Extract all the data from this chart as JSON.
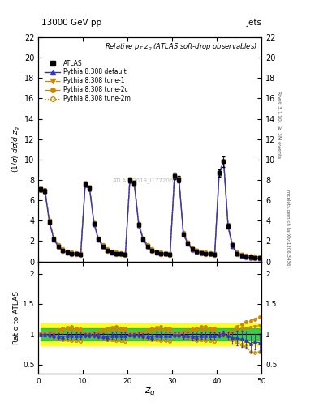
{
  "title_top": "13000 GeV pp",
  "title_right": "Jets",
  "plot_title": "Relative $p_T$ $z_g$ (ATLAS soft-drop observables)",
  "ylabel_main": "$(1/\\sigma)$ $d\\sigma/d$ $z_g$",
  "ylabel_ratio": "Ratio to ATLAS",
  "xlabel": "$z_g$",
  "right_label_top": "Rivet 3.1.10, ≥ 3M events",
  "right_label_mid": "mcplots.cern.ch [arXiv:1306.3436]",
  "watermark": "ATLAS_2019_I1772062",
  "xlim": [
    0,
    50
  ],
  "ylim_main": [
    0,
    22
  ],
  "ylim_ratio": [
    0.35,
    2.2
  ],
  "yticks_main": [
    0,
    2,
    4,
    6,
    8,
    10,
    12,
    14,
    16,
    18,
    20,
    22
  ],
  "yticks_ratio": [
    0.5,
    1.0,
    1.5,
    2.0
  ],
  "xticks": [
    0,
    10,
    20,
    30,
    40,
    50
  ],
  "colors": {
    "atlas_data": "#000000",
    "pythia_default": "#3333cc",
    "pythia_orange": "#cc8800",
    "band_yellow": "#ffff00",
    "band_green": "#00bb55"
  },
  "x_data": [
    0.5,
    1.5,
    2.5,
    3.5,
    4.5,
    5.5,
    6.5,
    7.5,
    8.5,
    9.5,
    10.5,
    11.5,
    12.5,
    13.5,
    14.5,
    15.5,
    16.5,
    17.5,
    18.5,
    19.5,
    20.5,
    21.5,
    22.5,
    23.5,
    24.5,
    25.5,
    26.5,
    27.5,
    28.5,
    29.5,
    30.5,
    31.5,
    32.5,
    33.5,
    34.5,
    35.5,
    36.5,
    37.5,
    38.5,
    39.5,
    40.5,
    41.5,
    42.5,
    43.5,
    44.5,
    45.5,
    46.5,
    47.5,
    48.5,
    49.5
  ],
  "atlas_y": [
    7.1,
    6.9,
    3.9,
    2.2,
    1.5,
    1.1,
    0.9,
    0.8,
    0.75,
    0.72,
    7.6,
    7.2,
    3.7,
    2.2,
    1.5,
    1.1,
    0.9,
    0.8,
    0.75,
    0.7,
    8.0,
    7.7,
    3.6,
    2.2,
    1.5,
    1.1,
    0.9,
    0.8,
    0.75,
    0.7,
    8.4,
    8.1,
    2.7,
    1.8,
    1.2,
    1.0,
    0.85,
    0.8,
    0.75,
    0.7,
    8.7,
    9.8,
    3.5,
    1.6,
    0.8,
    0.6,
    0.5,
    0.45,
    0.4,
    0.35
  ],
  "atlas_yerr": [
    0.2,
    0.2,
    0.15,
    0.1,
    0.08,
    0.06,
    0.05,
    0.05,
    0.04,
    0.04,
    0.25,
    0.25,
    0.15,
    0.1,
    0.08,
    0.06,
    0.05,
    0.05,
    0.04,
    0.04,
    0.25,
    0.25,
    0.15,
    0.1,
    0.08,
    0.06,
    0.05,
    0.05,
    0.04,
    0.04,
    0.3,
    0.3,
    0.15,
    0.1,
    0.08,
    0.06,
    0.05,
    0.05,
    0.04,
    0.04,
    0.35,
    0.5,
    0.2,
    0.15,
    0.1,
    0.08,
    0.07,
    0.06,
    0.05,
    0.05
  ],
  "pythia_default_y": [
    7.05,
    6.85,
    3.85,
    2.15,
    1.45,
    1.05,
    0.88,
    0.78,
    0.73,
    0.7,
    7.5,
    7.1,
    3.65,
    2.15,
    1.45,
    1.05,
    0.88,
    0.78,
    0.73,
    0.68,
    7.9,
    7.6,
    3.55,
    2.15,
    1.45,
    1.05,
    0.88,
    0.78,
    0.73,
    0.68,
    8.3,
    8.0,
    2.65,
    1.75,
    1.15,
    0.95,
    0.83,
    0.78,
    0.73,
    0.68,
    8.6,
    9.9,
    3.4,
    1.5,
    0.75,
    0.55,
    0.45,
    0.38,
    0.35,
    0.3
  ],
  "pythia_tune1_y": [
    7.1,
    7.0,
    4.0,
    2.25,
    1.55,
    1.15,
    0.95,
    0.85,
    0.78,
    0.75,
    7.65,
    7.25,
    3.75,
    2.25,
    1.55,
    1.15,
    0.95,
    0.85,
    0.78,
    0.73,
    8.05,
    7.75,
    3.65,
    2.25,
    1.55,
    1.15,
    0.95,
    0.85,
    0.78,
    0.73,
    8.45,
    8.15,
    2.75,
    1.85,
    1.25,
    1.05,
    0.9,
    0.85,
    0.78,
    0.73,
    8.75,
    9.85,
    3.55,
    1.65,
    0.85,
    0.65,
    0.55,
    0.5,
    0.45,
    0.4
  ],
  "pythia_tune2c_y": [
    7.15,
    7.05,
    4.05,
    2.3,
    1.6,
    1.2,
    1.0,
    0.9,
    0.82,
    0.78,
    7.7,
    7.3,
    3.8,
    2.3,
    1.6,
    1.2,
    1.0,
    0.9,
    0.82,
    0.77,
    8.1,
    7.8,
    3.7,
    2.3,
    1.6,
    1.2,
    1.0,
    0.9,
    0.82,
    0.77,
    8.5,
    8.2,
    2.8,
    1.9,
    1.3,
    1.1,
    0.95,
    0.9,
    0.82,
    0.77,
    8.8,
    9.9,
    3.6,
    1.7,
    0.9,
    0.7,
    0.6,
    0.55,
    0.5,
    0.45
  ],
  "pythia_tune2m_y": [
    7.0,
    6.8,
    3.8,
    2.1,
    1.4,
    1.0,
    0.82,
    0.72,
    0.67,
    0.64,
    7.45,
    7.05,
    3.6,
    2.1,
    1.4,
    1.0,
    0.82,
    0.72,
    0.67,
    0.62,
    7.85,
    7.55,
    3.5,
    2.1,
    1.4,
    1.0,
    0.82,
    0.72,
    0.67,
    0.62,
    8.25,
    7.95,
    2.6,
    1.7,
    1.1,
    0.9,
    0.77,
    0.72,
    0.67,
    0.62,
    8.55,
    9.8,
    3.35,
    1.45,
    0.7,
    0.5,
    0.4,
    0.32,
    0.28,
    0.25
  ]
}
